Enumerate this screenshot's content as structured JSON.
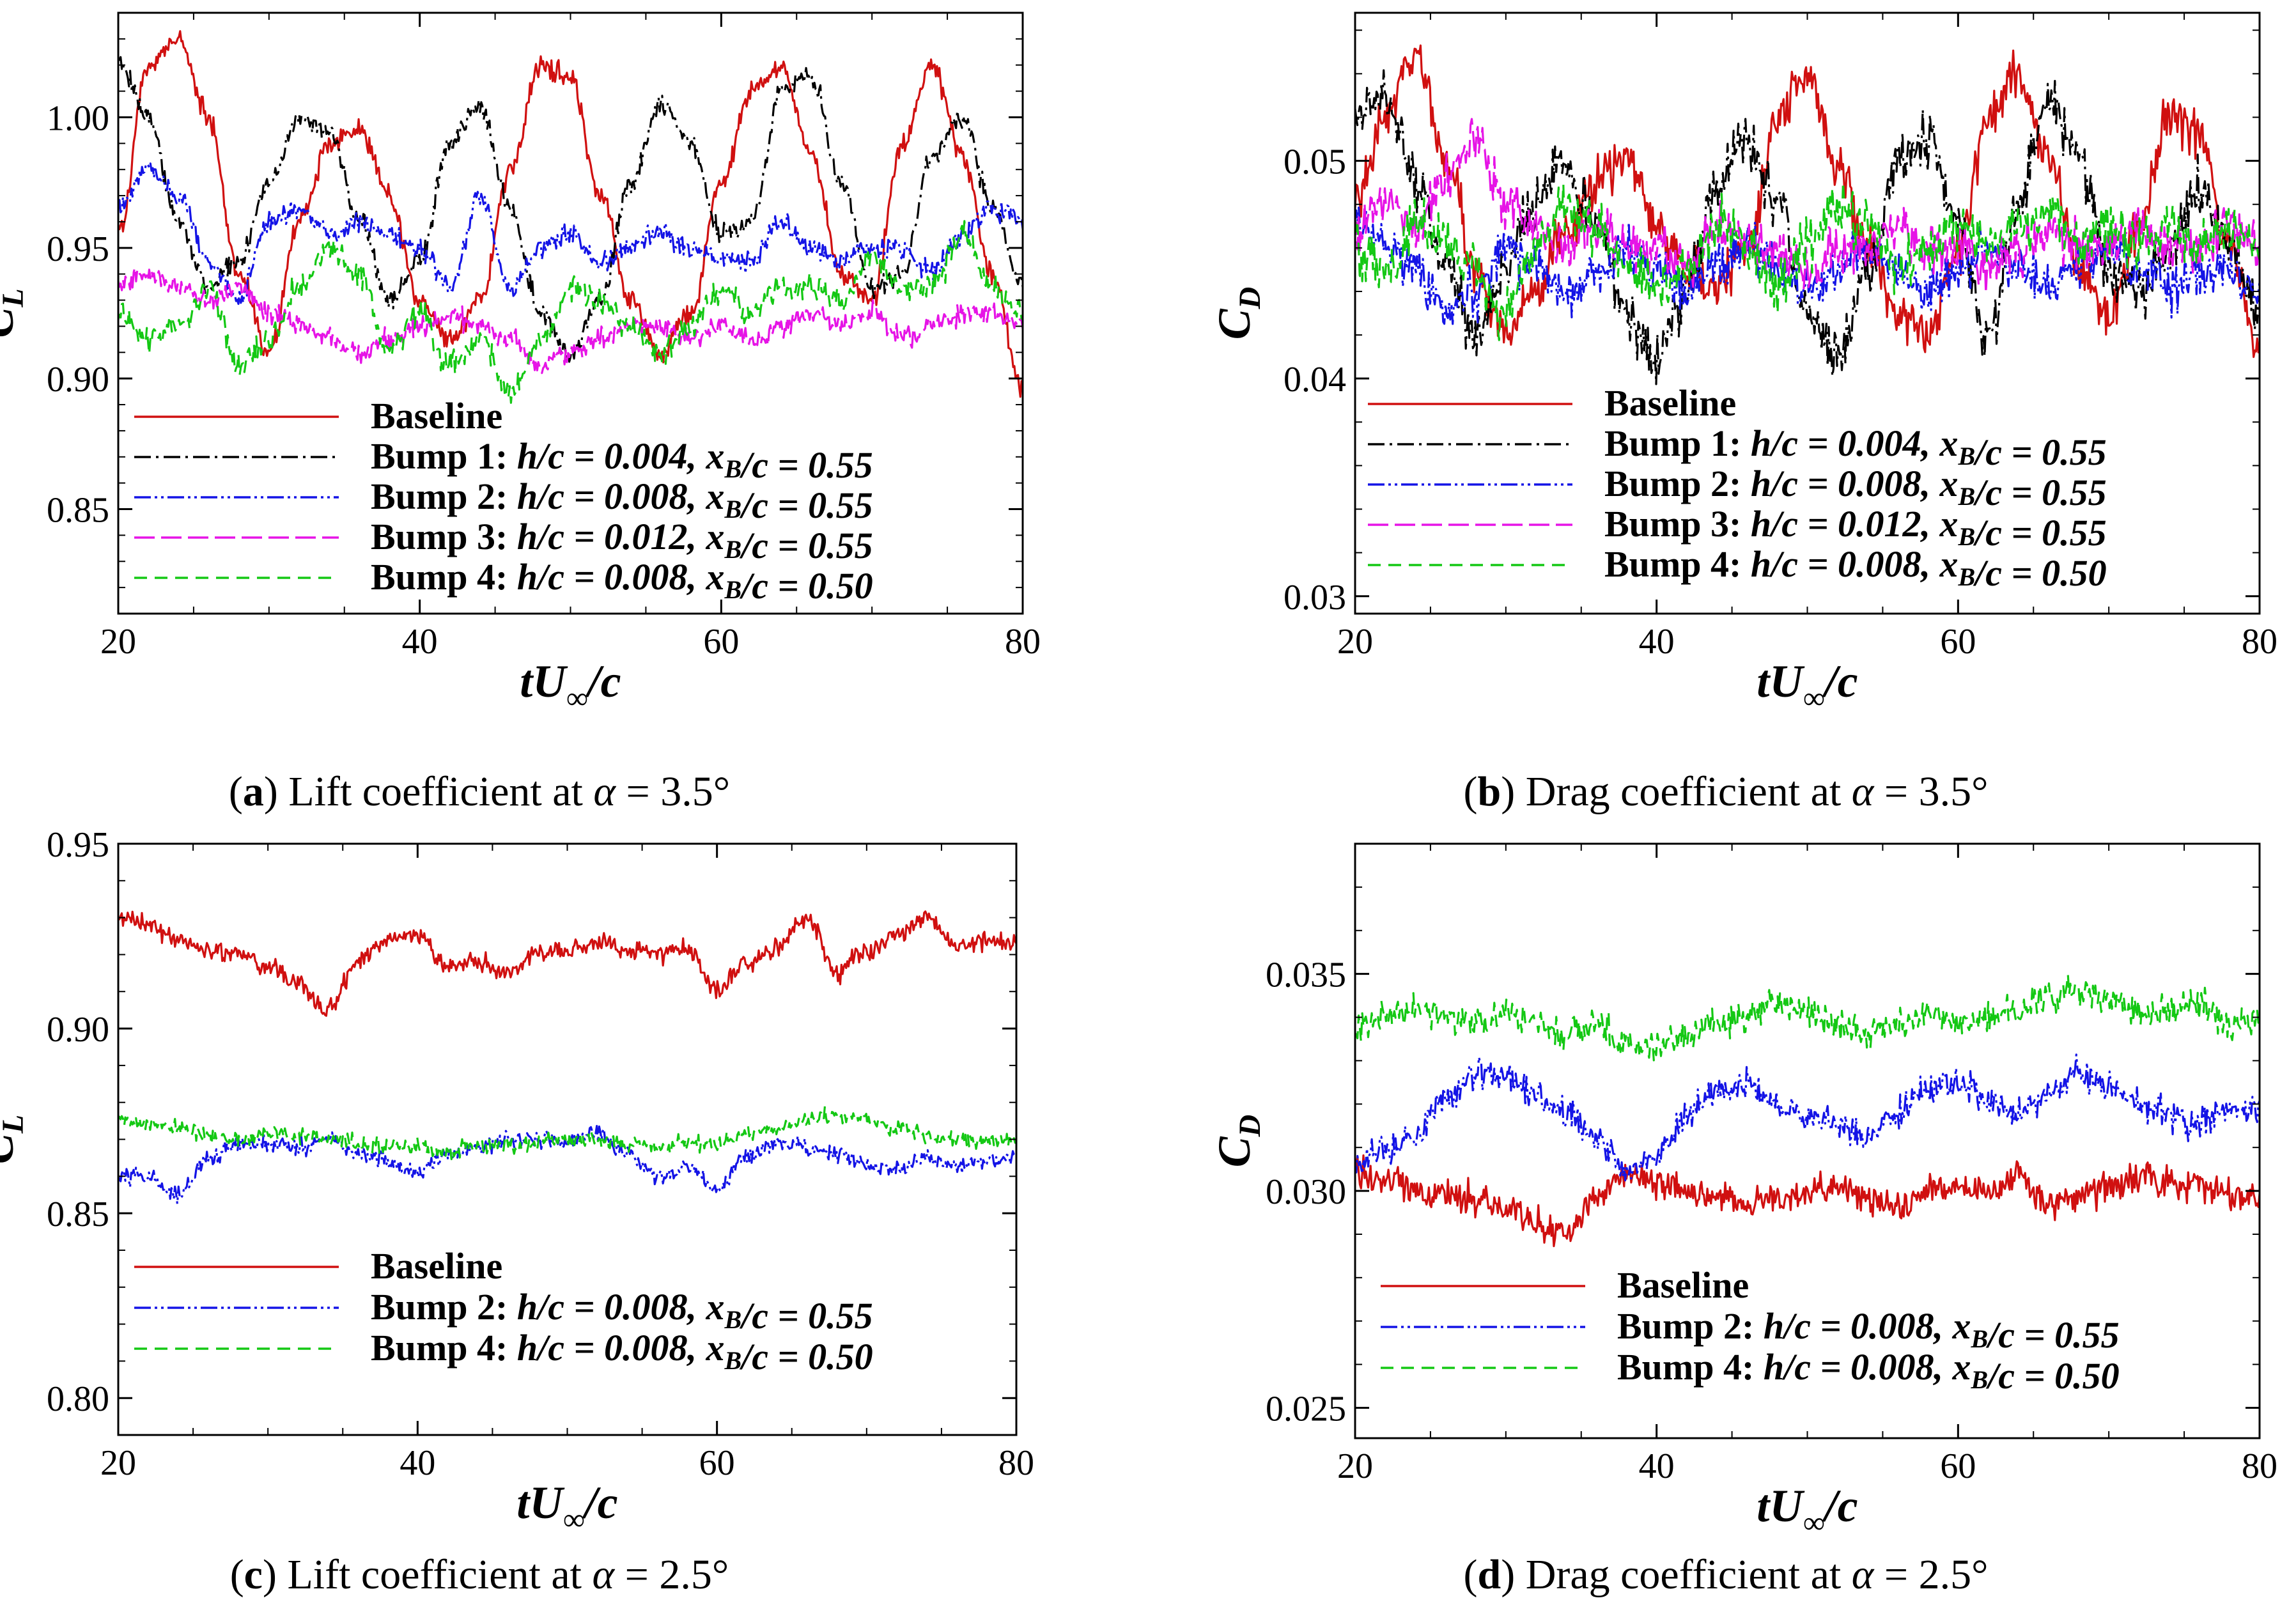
{
  "figure": {
    "captions": [
      {
        "letter": "a",
        "text": " Lift coefficient at ",
        "alpha": "α",
        "value": " = 3.5°"
      },
      {
        "letter": "b",
        "text": " Drag coefficient at ",
        "alpha": "α",
        "value": " = 3.5°"
      },
      {
        "letter": "c",
        "text": " Lift coefficient at ",
        "alpha": "α",
        "value": " = 2.5°"
      },
      {
        "letter": "d",
        "text": " Drag coefficient at ",
        "alpha": "α",
        "value": " = 2.5°"
      }
    ]
  },
  "styles": {
    "Baseline": {
      "color": "#d01010",
      "dash": ""
    },
    "Bump 1": {
      "color": "#000000",
      "dash": "26 8 4 8"
    },
    "Bump 2": {
      "color": "#1414e6",
      "dash": "26 6 4 6 4 6"
    },
    "Bump 3": {
      "color": "#e614e6",
      "dash": "32 10"
    },
    "Bump 4": {
      "color": "#14c814",
      "dash": "20 12"
    }
  },
  "chart_data": [
    {
      "type": "line",
      "panel": "a",
      "title": "",
      "xlabel": "tU∞/c",
      "ylabel": "C_L",
      "xlim": [
        20,
        80
      ],
      "ylim": [
        0.81,
        1.04
      ],
      "xticks": [
        "20",
        "40",
        "60",
        "80"
      ],
      "yticks": [
        "0.85",
        "0.90",
        "0.95",
        "1.00"
      ],
      "ytick_values": [
        0.85,
        0.9,
        0.95,
        1.0
      ],
      "legend": "lower-left",
      "legend_entries": [
        {
          "name": "Baseline",
          "label": "Baseline"
        },
        {
          "name": "Bump 1",
          "label": "Bump 1: h/c = 0.004, x_B/c = 0.55"
        },
        {
          "name": "Bump 2",
          "label": "Bump 2: h/c = 0.008, x_B/c = 0.55"
        },
        {
          "name": "Bump 3",
          "label": "Bump 3: h/c = 0.012, x_B/c = 0.55"
        },
        {
          "name": "Bump 4",
          "label": "Bump 4: h/c = 0.008, x_B/c = 0.50"
        }
      ],
      "x": [
        20,
        22,
        24,
        26,
        28,
        30,
        32,
        34,
        36,
        38,
        40,
        42,
        44,
        46,
        48,
        50,
        52,
        54,
        56,
        58,
        60,
        62,
        64,
        66,
        68,
        70,
        72,
        74,
        76,
        78,
        80
      ],
      "series": [
        {
          "name": "Baseline",
          "noise": 0.004,
          "values": [
            0.955,
            1.02,
            1.03,
            1.0,
            0.94,
            0.91,
            0.96,
            0.99,
            0.995,
            0.97,
            0.93,
            0.915,
            0.93,
            0.98,
            1.02,
            1.015,
            0.97,
            0.93,
            0.91,
            0.925,
            0.975,
            1.01,
            1.02,
            0.985,
            0.94,
            0.93,
            0.99,
            1.02,
            0.985,
            0.94,
            0.895
          ]
        },
        {
          "name": "Bump 1",
          "noise": 0.004,
          "values": [
            1.02,
            1.0,
            0.96,
            0.935,
            0.945,
            0.975,
            1.0,
            0.995,
            0.96,
            0.93,
            0.945,
            0.99,
            1.005,
            0.965,
            0.925,
            0.91,
            0.93,
            0.975,
            1.005,
            0.99,
            0.955,
            0.96,
            1.01,
            1.015,
            0.975,
            0.935,
            0.94,
            0.985,
            1.0,
            0.965,
            0.935
          ]
        },
        {
          "name": "Bump 2",
          "noise": 0.004,
          "values": [
            0.965,
            0.98,
            0.97,
            0.945,
            0.93,
            0.96,
            0.965,
            0.955,
            0.96,
            0.955,
            0.95,
            0.935,
            0.97,
            0.935,
            0.95,
            0.955,
            0.945,
            0.95,
            0.955,
            0.95,
            0.945,
            0.945,
            0.96,
            0.95,
            0.945,
            0.95,
            0.95,
            0.94,
            0.955,
            0.965,
            0.96
          ]
        },
        {
          "name": "Bump 3",
          "noise": 0.004,
          "values": [
            0.935,
            0.94,
            0.935,
            0.93,
            0.935,
            0.925,
            0.92,
            0.915,
            0.91,
            0.915,
            0.92,
            0.925,
            0.92,
            0.915,
            0.905,
            0.91,
            0.915,
            0.92,
            0.92,
            0.915,
            0.92,
            0.915,
            0.92,
            0.925,
            0.92,
            0.925,
            0.915,
            0.92,
            0.925,
            0.925,
            0.92
          ]
        },
        {
          "name": "Bump 4",
          "noise": 0.005,
          "values": [
            0.925,
            0.915,
            0.92,
            0.935,
            0.905,
            0.915,
            0.935,
            0.95,
            0.94,
            0.91,
            0.925,
            0.905,
            0.915,
            0.895,
            0.915,
            0.935,
            0.93,
            0.92,
            0.91,
            0.92,
            0.935,
            0.925,
            0.935,
            0.935,
            0.93,
            0.945,
            0.935,
            0.935,
            0.955,
            0.935,
            0.925
          ]
        }
      ]
    },
    {
      "type": "line",
      "panel": "b",
      "title": "",
      "xlabel": "tU∞/c",
      "ylabel": "C_D",
      "xlim": [
        20,
        80
      ],
      "ylim": [
        0.0292,
        0.0568
      ],
      "xticks": [
        "20",
        "40",
        "60",
        "80"
      ],
      "yticks": [
        "0.03",
        "0.04",
        "0.05"
      ],
      "ytick_values": [
        0.03,
        0.04,
        0.05
      ],
      "legend": "lower-left",
      "legend_entries": [
        {
          "name": "Baseline",
          "label": "Baseline"
        },
        {
          "name": "Bump 1",
          "label": "Bump 1: h/c = 0.004, x_B/c = 0.55"
        },
        {
          "name": "Bump 2",
          "label": "Bump 2: h/c = 0.008, x_B/c = 0.55"
        },
        {
          "name": "Bump 3",
          "label": "Bump 3: h/c = 0.012, x_B/c = 0.55"
        },
        {
          "name": "Bump 4",
          "label": "Bump 4: h/c = 0.008, x_B/c = 0.50"
        }
      ],
      "x": [
        20,
        22,
        24,
        26,
        28,
        30,
        32,
        34,
        36,
        38,
        40,
        42,
        44,
        46,
        48,
        50,
        52,
        54,
        56,
        58,
        60,
        62,
        64,
        66,
        68,
        70,
        72,
        74,
        76,
        78,
        80
      ],
      "series": [
        {
          "name": "Baseline",
          "noise": 0.0011,
          "values": [
            0.048,
            0.052,
            0.055,
            0.05,
            0.045,
            0.042,
            0.044,
            0.047,
            0.049,
            0.05,
            0.047,
            0.045,
            0.044,
            0.046,
            0.052,
            0.054,
            0.05,
            0.046,
            0.043,
            0.042,
            0.046,
            0.052,
            0.054,
            0.05,
            0.045,
            0.043,
            0.047,
            0.052,
            0.051,
            0.046,
            0.041
          ]
        },
        {
          "name": "Bump 1",
          "noise": 0.0012,
          "values": [
            0.052,
            0.053,
            0.049,
            0.045,
            0.042,
            0.045,
            0.048,
            0.05,
            0.047,
            0.043,
            0.041,
            0.044,
            0.049,
            0.051,
            0.048,
            0.043,
            0.041,
            0.045,
            0.05,
            0.051,
            0.047,
            0.042,
            0.048,
            0.053,
            0.05,
            0.045,
            0.044,
            0.046,
            0.049,
            0.046,
            0.043
          ]
        },
        {
          "name": "Bump 2",
          "noise": 0.0011,
          "values": [
            0.047,
            0.046,
            0.045,
            0.043,
            0.044,
            0.046,
            0.045,
            0.044,
            0.045,
            0.046,
            0.045,
            0.044,
            0.045,
            0.046,
            0.045,
            0.044,
            0.045,
            0.046,
            0.045,
            0.044,
            0.045,
            0.046,
            0.045,
            0.044,
            0.045,
            0.046,
            0.045,
            0.044,
            0.045,
            0.045,
            0.044
          ]
        },
        {
          "name": "Bump 3",
          "noise": 0.0011,
          "values": [
            0.047,
            0.048,
            0.047,
            0.049,
            0.051,
            0.048,
            0.047,
            0.046,
            0.047,
            0.046,
            0.046,
            0.045,
            0.047,
            0.046,
            0.046,
            0.045,
            0.046,
            0.046,
            0.047,
            0.046,
            0.046,
            0.045,
            0.046,
            0.047,
            0.046,
            0.046,
            0.047,
            0.046,
            0.046,
            0.047,
            0.046
          ]
        },
        {
          "name": "Bump 4",
          "noise": 0.0012,
          "values": [
            0.046,
            0.045,
            0.047,
            0.046,
            0.045,
            0.043,
            0.046,
            0.048,
            0.047,
            0.045,
            0.044,
            0.045,
            0.047,
            0.046,
            0.044,
            0.046,
            0.048,
            0.047,
            0.045,
            0.046,
            0.047,
            0.046,
            0.047,
            0.048,
            0.046,
            0.047,
            0.046,
            0.047,
            0.046,
            0.047,
            0.046
          ]
        }
      ]
    },
    {
      "type": "line",
      "panel": "c",
      "title": "",
      "xlabel": "tU∞/c",
      "ylabel": "C_L",
      "xlim": [
        20,
        80
      ],
      "ylim": [
        0.79,
        0.95
      ],
      "xticks": [
        "20",
        "40",
        "60",
        "80"
      ],
      "yticks": [
        "0.80",
        "0.85",
        "0.90",
        "0.95"
      ],
      "ytick_values": [
        0.8,
        0.85,
        0.9,
        0.95
      ],
      "legend": "lower-left",
      "legend_entries": [
        {
          "name": "Baseline",
          "label": "Baseline"
        },
        {
          "name": "Bump 2",
          "label": "Bump 2: h/c = 0.008, x_B/c = 0.55"
        },
        {
          "name": "Bump 4",
          "label": "Bump 4: h/c = 0.008, x_B/c = 0.50"
        }
      ],
      "x": [
        20,
        22,
        24,
        26,
        28,
        30,
        32,
        34,
        36,
        38,
        40,
        42,
        44,
        46,
        48,
        50,
        52,
        54,
        56,
        58,
        60,
        62,
        64,
        66,
        68,
        70,
        72,
        74,
        76,
        78,
        80
      ],
      "series": [
        {
          "name": "Baseline",
          "noise": 0.0025,
          "values": [
            0.93,
            0.928,
            0.924,
            0.921,
            0.92,
            0.917,
            0.912,
            0.905,
            0.918,
            0.924,
            0.925,
            0.917,
            0.918,
            0.915,
            0.92,
            0.921,
            0.923,
            0.921,
            0.92,
            0.922,
            0.91,
            0.918,
            0.922,
            0.93,
            0.915,
            0.921,
            0.925,
            0.93,
            0.922,
            0.924,
            0.923
          ]
        },
        {
          "name": "Bump 2",
          "noise": 0.0022,
          "values": [
            0.86,
            0.86,
            0.855,
            0.865,
            0.869,
            0.869,
            0.868,
            0.87,
            0.866,
            0.864,
            0.861,
            0.866,
            0.868,
            0.87,
            0.87,
            0.869,
            0.872,
            0.866,
            0.86,
            0.862,
            0.857,
            0.865,
            0.869,
            0.868,
            0.866,
            0.863,
            0.862,
            0.865,
            0.863,
            0.864,
            0.865
          ]
        },
        {
          "name": "Bump 4",
          "noise": 0.0022,
          "values": [
            0.875,
            0.874,
            0.873,
            0.871,
            0.87,
            0.872,
            0.871,
            0.87,
            0.869,
            0.868,
            0.868,
            0.867,
            0.868,
            0.868,
            0.869,
            0.87,
            0.87,
            0.869,
            0.868,
            0.869,
            0.869,
            0.872,
            0.873,
            0.875,
            0.877,
            0.876,
            0.873,
            0.871,
            0.87,
            0.87,
            0.869
          ]
        }
      ]
    },
    {
      "type": "line",
      "panel": "d",
      "title": "",
      "xlabel": "tU∞/c",
      "ylabel": "C_D",
      "xlim": [
        20,
        80
      ],
      "ylim": [
        0.0243,
        0.038
      ],
      "xticks": [
        "20",
        "40",
        "60",
        "80"
      ],
      "yticks": [
        "0.025",
        "0.030",
        "0.035"
      ],
      "ytick_values": [
        0.025,
        0.03,
        0.035
      ],
      "legend": "lower-left",
      "legend_entries": [
        {
          "name": "Baseline",
          "label": "Baseline"
        },
        {
          "name": "Bump 2",
          "label": "Bump 2: h/c = 0.008, x_B/c = 0.55"
        },
        {
          "name": "Bump 4",
          "label": "Bump 4: h/c = 0.008, x_B/c = 0.50"
        }
      ],
      "x": [
        20,
        22,
        24,
        26,
        28,
        30,
        32,
        34,
        36,
        38,
        40,
        42,
        44,
        46,
        48,
        50,
        52,
        54,
        56,
        58,
        60,
        62,
        64,
        66,
        68,
        70,
        72,
        74,
        76,
        78,
        80
      ],
      "series": [
        {
          "name": "Baseline",
          "noise": 0.00035,
          "values": [
            0.0305,
            0.0303,
            0.03,
            0.0299,
            0.0298,
            0.0296,
            0.0292,
            0.029,
            0.0298,
            0.0304,
            0.0302,
            0.03,
            0.0299,
            0.0297,
            0.0298,
            0.03,
            0.0301,
            0.0298,
            0.0296,
            0.03,
            0.0301,
            0.03,
            0.0304,
            0.0297,
            0.0299,
            0.0301,
            0.0303,
            0.0302,
            0.0301,
            0.0299,
            0.0298
          ]
        },
        {
          "name": "Bump 2",
          "noise": 0.00035,
          "values": [
            0.0306,
            0.031,
            0.0312,
            0.0321,
            0.0327,
            0.0326,
            0.0322,
            0.0318,
            0.0312,
            0.0305,
            0.0307,
            0.0318,
            0.0323,
            0.0325,
            0.032,
            0.0317,
            0.0315,
            0.0312,
            0.0318,
            0.0324,
            0.0325,
            0.0321,
            0.0318,
            0.0322,
            0.0327,
            0.0324,
            0.032,
            0.0318,
            0.0316,
            0.0319,
            0.0318
          ]
        },
        {
          "name": "Bump 4",
          "noise": 0.00035,
          "values": [
            0.0337,
            0.0341,
            0.0342,
            0.034,
            0.0339,
            0.0341,
            0.0339,
            0.0336,
            0.0338,
            0.0334,
            0.0333,
            0.0336,
            0.0339,
            0.034,
            0.0343,
            0.0341,
            0.0338,
            0.0336,
            0.0339,
            0.0341,
            0.0338,
            0.034,
            0.0342,
            0.0345,
            0.0347,
            0.0344,
            0.0341,
            0.0342,
            0.0343,
            0.0338,
            0.034
          ]
        }
      ]
    }
  ]
}
